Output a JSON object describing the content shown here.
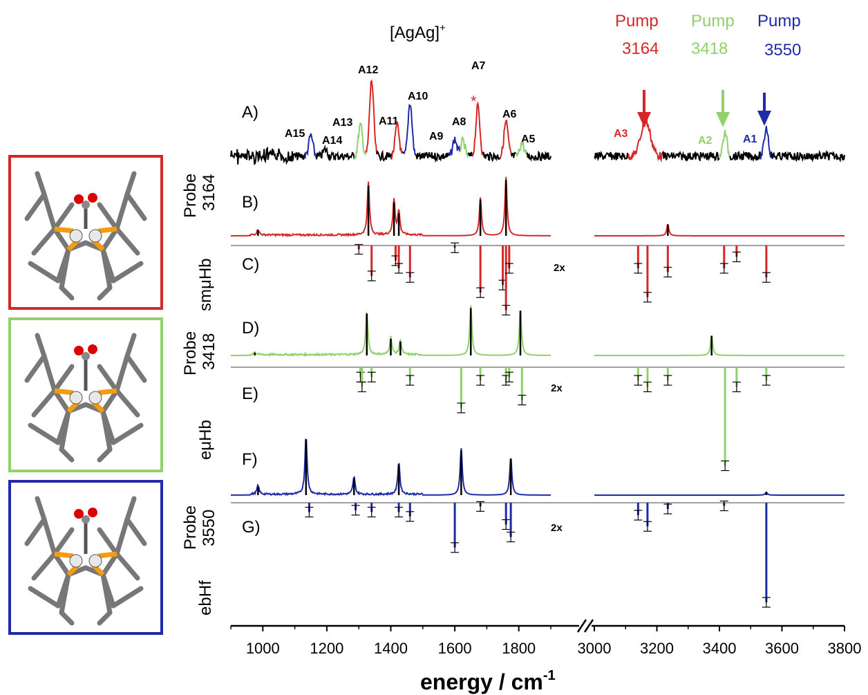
{
  "title": "[AgAg]",
  "title_sup": "+",
  "pumps": [
    {
      "word": "Pump",
      "value": "3164",
      "color": "#d62728"
    },
    {
      "word": "Pump",
      "value": "3418",
      "color": "#8fd16a"
    },
    {
      "word": "Pump",
      "value": "3550",
      "color": "#1f2aa8"
    }
  ],
  "panel_letters": [
    "A)",
    "B)",
    "C)",
    "D)",
    "E)",
    "F)",
    "G)"
  ],
  "side_labels": {
    "probe_word": "Probe",
    "probe_values": [
      "3164",
      "3418",
      "3550"
    ],
    "methods": [
      "smμHb",
      "eμHb",
      "ebHf"
    ]
  },
  "scale_note": "2x",
  "xlabel": "energy / cm",
  "xlabel_sup": "-1",
  "peak_labels": [
    {
      "text": "A15",
      "color": "#000000"
    },
    {
      "text": "A14",
      "color": "#000000"
    },
    {
      "text": "A13",
      "color": "#000000"
    },
    {
      "text": "A12",
      "color": "#000000"
    },
    {
      "text": "A11",
      "color": "#000000"
    },
    {
      "text": "A10",
      "color": "#000000"
    },
    {
      "text": "A9",
      "color": "#000000"
    },
    {
      "text": "A8",
      "color": "#000000"
    },
    {
      "text": "A7",
      "color": "#000000"
    },
    {
      "text": "A6",
      "color": "#000000"
    },
    {
      "text": "A5",
      "color": "#000000"
    },
    {
      "text": "A3",
      "color": "#d62728"
    },
    {
      "text": "A2",
      "color": "#8fd16a"
    },
    {
      "text": "A1",
      "color": "#1f2aa8"
    }
  ],
  "colors": {
    "red": "#d62728",
    "green": "#8fd16a",
    "blue": "#1f2aa8",
    "black": "#000000",
    "gray": "#a0a0a0"
  },
  "structure_boxes": [
    {
      "name": "structure-red",
      "color": "#d62728"
    },
    {
      "name": "structure-green",
      "color": "#8fd16a"
    },
    {
      "name": "structure-blue",
      "color": "#1f2aa8"
    }
  ],
  "chart_data": {
    "type": "line",
    "title": "[AgAg]+",
    "xlabel": "energy / cm-1",
    "x_axis": {
      "segments": [
        [
          900,
          1900
        ],
        [
          3000,
          3800
        ]
      ],
      "ticks": [
        1000,
        1200,
        1400,
        1600,
        1800,
        3000,
        3200,
        3400,
        3600,
        3800
      ],
      "break": true
    },
    "experimental_peaks_A": [
      {
        "label": "A15",
        "x": 1150,
        "color": "blue"
      },
      {
        "label": "A14",
        "x": 1195,
        "color": "black"
      },
      {
        "label": "A13",
        "x": 1305,
        "color": "green"
      },
      {
        "label": "A12",
        "x": 1340,
        "color": "red"
      },
      {
        "label": "A11",
        "x": 1420,
        "color": "red"
      },
      {
        "label": "A10",
        "x": 1460,
        "color": "blue"
      },
      {
        "label": "A9",
        "x": 1600,
        "color": "blue"
      },
      {
        "label": "A8",
        "x": 1625,
        "color": "green"
      },
      {
        "label": "A7",
        "x": 1672,
        "color": "red"
      },
      {
        "label": "A6",
        "x": 1760,
        "color": "red"
      },
      {
        "label": "A5",
        "x": 1810,
        "color": "green"
      },
      {
        "label": "A3",
        "x": 3164,
        "color": "red"
      },
      {
        "label": "A2",
        "x": 3418,
        "color": "green"
      },
      {
        "label": "A1",
        "x": 3550,
        "color": "blue"
      }
    ],
    "spectra": [
      {
        "panel": "B",
        "color": "red",
        "peaks": [
          [
            985,
            0.1
          ],
          [
            1330,
            0.9
          ],
          [
            1410,
            0.6
          ],
          [
            1425,
            0.4
          ],
          [
            1680,
            0.65
          ],
          [
            1760,
            1.0
          ],
          [
            3235,
            0.2
          ]
        ]
      },
      {
        "panel": "D",
        "color": "green",
        "peaks": [
          [
            975,
            0.05
          ],
          [
            1325,
            0.75
          ],
          [
            1400,
            0.3
          ],
          [
            1430,
            0.25
          ],
          [
            1650,
            0.85
          ],
          [
            1805,
            0.8
          ],
          [
            3375,
            0.35
          ]
        ]
      },
      {
        "panel": "F",
        "color": "blue",
        "peaks": [
          [
            985,
            0.15
          ],
          [
            1135,
            1.0
          ],
          [
            1285,
            0.3
          ],
          [
            1425,
            0.55
          ],
          [
            1620,
            0.8
          ],
          [
            1775,
            0.65
          ],
          [
            3550,
            0.05
          ]
        ]
      }
    ],
    "depletion_sticks": [
      {
        "panel": "C",
        "color": "red",
        "sticks": [
          [
            1300,
            0.05
          ],
          [
            1340,
            0.4
          ],
          [
            1415,
            0.2
          ],
          [
            1425,
            0.3
          ],
          [
            1460,
            0.42
          ],
          [
            1600,
            0.03
          ],
          [
            1680,
            0.62
          ],
          [
            1750,
            0.52
          ],
          [
            1760,
            0.85
          ],
          [
            1770,
            0.3
          ],
          [
            3140,
            0.3
          ],
          [
            3170,
            0.68
          ],
          [
            3235,
            0.35
          ],
          [
            3415,
            0.3
          ],
          [
            3455,
            0.15
          ],
          [
            3550,
            0.42
          ]
        ]
      },
      {
        "panel": "E",
        "color": "green",
        "sticks": [
          [
            1305,
            0.15
          ],
          [
            1310,
            0.3
          ],
          [
            1340,
            0.15
          ],
          [
            1460,
            0.2
          ],
          [
            1620,
            0.62
          ],
          [
            1680,
            0.2
          ],
          [
            1760,
            0.2
          ],
          [
            1770,
            0.15
          ],
          [
            1810,
            0.5
          ],
          [
            3140,
            0.2
          ],
          [
            3170,
            0.3
          ],
          [
            3235,
            0.2
          ],
          [
            3418,
            1.5
          ],
          [
            3455,
            0.3
          ],
          [
            3550,
            0.2
          ]
        ]
      },
      {
        "panel": "G",
        "color": "blue",
        "sticks": [
          [
            1145,
            0.15
          ],
          [
            1290,
            0.12
          ],
          [
            1340,
            0.15
          ],
          [
            1425,
            0.15
          ],
          [
            1460,
            0.22
          ],
          [
            1600,
            0.72
          ],
          [
            1680,
            0.06
          ],
          [
            1760,
            0.35
          ],
          [
            1775,
            0.55
          ],
          [
            3140,
            0.2
          ],
          [
            3170,
            0.38
          ],
          [
            3235,
            0.1
          ],
          [
            3415,
            0.05
          ],
          [
            3550,
            1.6
          ]
        ]
      }
    ]
  }
}
